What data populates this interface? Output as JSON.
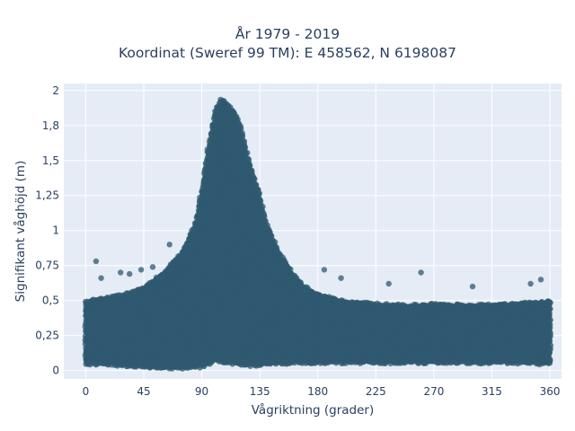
{
  "chart_data": {
    "type": "scatter",
    "title_lines": [
      "År 1979 - 2019",
      "Koordinat (Sweref 99 TM): E 458562, N 6198087"
    ],
    "xlabel": "Vågriktning (grader)",
    "ylabel": "Signifikant våghöjd (m)",
    "xlim": [
      -17,
      369
    ],
    "ylim": [
      -0.06,
      2.05
    ],
    "x_ticks": [
      0,
      45,
      90,
      135,
      180,
      225,
      270,
      315,
      360
    ],
    "x_tick_labels": [
      "0",
      "45",
      "90",
      "135",
      "180",
      "225",
      "270",
      "315",
      "360"
    ],
    "y_ticks": [
      0,
      0.25,
      0.5,
      0.75,
      1,
      1.25,
      1.5,
      1.75,
      2
    ],
    "y_tick_labels": [
      "0",
      "0,25",
      "0,5",
      "0,75",
      "1",
      "1,25",
      "1,5",
      "1,8",
      "2"
    ],
    "grid": true,
    "legend": "none",
    "marker_color": "#2f5a70",
    "background_color": "#e5ecf6",
    "envelope": {
      "x": [
        0,
        15,
        30,
        45,
        60,
        75,
        85,
        90,
        95,
        100,
        105,
        110,
        115,
        120,
        125,
        130,
        135,
        140,
        150,
        160,
        170,
        180,
        200,
        225,
        250,
        270,
        300,
        330,
        360
      ],
      "y_max": [
        0.5,
        0.52,
        0.55,
        0.6,
        0.7,
        0.85,
        1.05,
        1.3,
        1.6,
        1.85,
        1.95,
        1.9,
        1.85,
        1.75,
        1.55,
        1.4,
        1.25,
        1.05,
        0.85,
        0.7,
        0.6,
        0.55,
        0.5,
        0.48,
        0.47,
        0.48,
        0.47,
        0.48,
        0.5
      ],
      "y_min": [
        0.05,
        0.05,
        0.04,
        0.03,
        0.02,
        0.02,
        0.03,
        0.03,
        0.05,
        0.07,
        0.07,
        0.06,
        0.05,
        0.05,
        0.04,
        0.04,
        0.04,
        0.05,
        0.05,
        0.06,
        0.06,
        0.06,
        0.06,
        0.06,
        0.06,
        0.06,
        0.06,
        0.06,
        0.05
      ]
    },
    "outliers": [
      {
        "x": 8,
        "y": 0.78
      },
      {
        "x": 12,
        "y": 0.66
      },
      {
        "x": 27,
        "y": 0.7
      },
      {
        "x": 34,
        "y": 0.69
      },
      {
        "x": 43,
        "y": 0.72
      },
      {
        "x": 52,
        "y": 0.74
      },
      {
        "x": 65,
        "y": 0.9
      },
      {
        "x": 260,
        "y": 0.7
      },
      {
        "x": 353,
        "y": 0.65
      },
      {
        "x": 345,
        "y": 0.62
      },
      {
        "x": 300,
        "y": 0.6
      },
      {
        "x": 235,
        "y": 0.62
      },
      {
        "x": 198,
        "y": 0.66
      },
      {
        "x": 185,
        "y": 0.72
      }
    ]
  }
}
